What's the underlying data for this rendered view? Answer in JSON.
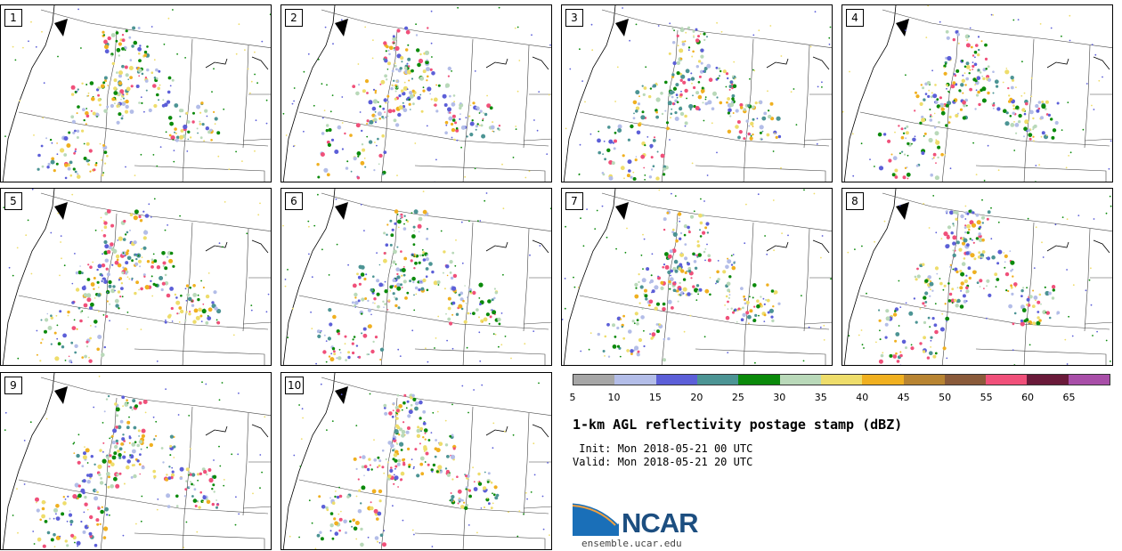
{
  "panels": [
    {
      "label": "1"
    },
    {
      "label": "2"
    },
    {
      "label": "3"
    },
    {
      "label": "4"
    },
    {
      "label": "5"
    },
    {
      "label": "6"
    },
    {
      "label": "7"
    },
    {
      "label": "8"
    },
    {
      "label": "9"
    },
    {
      "label": "10"
    }
  ],
  "colorbar": {
    "ticks": [
      "5",
      "10",
      "15",
      "20",
      "25",
      "30",
      "35",
      "40",
      "45",
      "50",
      "55",
      "60",
      "65"
    ],
    "colors": [
      "#a6a6a6",
      "#b3bde8",
      "#5c5fd8",
      "#4c9494",
      "#0b8a0b",
      "#b9d9b9",
      "#eedd6b",
      "#f0b020",
      "#b88432",
      "#8a5a3a",
      "#f0507a",
      "#6a1a3a",
      "#a84ea8"
    ]
  },
  "title": "1-km AGL reflectivity postage stamp (dBZ)",
  "init_text": " Init: Mon 2018-05-21 00 UTC",
  "valid_text": "Valid: Mon 2018-05-21 20 UTC",
  "logo": {
    "text": "NCAR",
    "url": "ensemble.ucar.edu"
  }
}
